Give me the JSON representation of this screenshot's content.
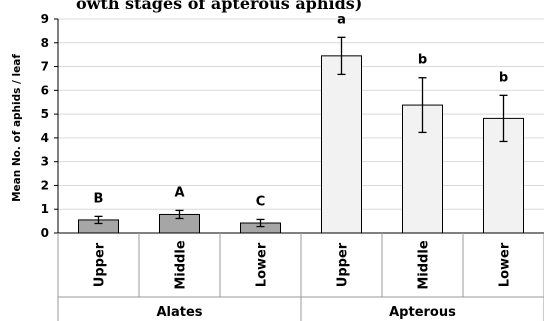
{
  "partial_title": "owth stages of apterous aphids)",
  "chart_data": {
    "type": "bar",
    "ylabel": "Mean No. of aphids / leaf",
    "ylim": [
      0,
      9
    ],
    "yticks": [
      0,
      1,
      2,
      3,
      4,
      5,
      6,
      7,
      8,
      9
    ],
    "grid": true,
    "categories": [
      "Upper",
      "Middle",
      "Lower",
      "Upper",
      "Middle",
      "Lower"
    ],
    "groups": [
      {
        "label": "Alates",
        "members": [
          0,
          1,
          2
        ]
      },
      {
        "label": "Apterous",
        "members": [
          3,
          4,
          5
        ]
      }
    ],
    "values": [
      0.55,
      0.78,
      0.42,
      7.45,
      5.38,
      4.82
    ],
    "errors": [
      0.15,
      0.17,
      0.15,
      0.78,
      1.15,
      0.97
    ],
    "letters": [
      "B",
      "A",
      "C",
      "a",
      "b",
      "b"
    ],
    "bar_colors": [
      "#a6a6a6",
      "#a6a6a6",
      "#a6a6a6",
      "#f2f2f2",
      "#f2f2f2",
      "#f2f2f2"
    ]
  }
}
